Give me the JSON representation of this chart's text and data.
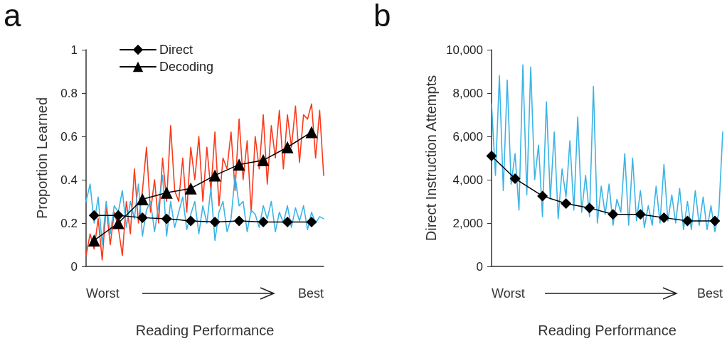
{
  "chart_data": [
    {
      "type": "line",
      "title": "a",
      "xlabel": "Reading Performance",
      "ylabel": "Proportion Learned",
      "annotations": [
        "Worst",
        "Best"
      ],
      "categories": [
        null,
        null,
        null,
        null,
        null,
        null,
        null,
        null,
        null,
        null,
        null,
        null,
        null,
        null,
        null,
        null,
        null,
        null,
        null,
        null,
        null,
        null,
        null,
        null,
        null,
        null,
        null,
        null,
        null,
        null,
        null,
        null,
        null,
        null,
        null,
        null,
        null,
        null,
        null,
        null,
        null,
        null,
        null,
        null,
        null,
        null,
        null,
        null,
        null,
        null,
        null,
        null,
        null,
        null,
        null,
        null,
        null,
        null,
        null,
        null
      ],
      "ylim": [
        0,
        1
      ],
      "yticks": [
        0,
        0.2,
        0.4,
        0.6,
        0.8,
        1
      ],
      "tick_labels": "y",
      "legend": "top left",
      "grid": false,
      "series": [
        {
          "color": "#fa3a1c",
          "marker": "none",
          "values": [
            0.05,
            0.15,
            0.08,
            0.22,
            0.03,
            0.28,
            0.1,
            0.25,
            0.18,
            0.05,
            0.3,
            0.15,
            0.45,
            0.2,
            0.35,
            0.55,
            0.25,
            0.4,
            0.2,
            0.5,
            0.3,
            0.65,
            0.35,
            0.3,
            0.5,
            0.25,
            0.55,
            0.4,
            0.6,
            0.3,
            0.55,
            0.35,
            0.62,
            0.28,
            0.5,
            0.45,
            0.62,
            0.35,
            0.68,
            0.4,
            0.58,
            0.25,
            0.6,
            0.45,
            0.7,
            0.38,
            0.65,
            0.5,
            0.72,
            0.45,
            0.7,
            0.55,
            0.74,
            0.48,
            0.7,
            0.68,
            0.75,
            0.5,
            0.72,
            0.42
          ]
        },
        {
          "color": "#3cb4e5",
          "marker": "none",
          "values": [
            0.3,
            0.38,
            0.2,
            0.32,
            0.1,
            0.3,
            0.15,
            0.28,
            0.25,
            0.35,
            0.18,
            0.3,
            0.22,
            0.38,
            0.14,
            0.26,
            0.3,
            0.16,
            0.28,
            0.42,
            0.14,
            0.3,
            0.18,
            0.25,
            0.32,
            0.17,
            0.24,
            0.3,
            0.15,
            0.28,
            0.2,
            0.36,
            0.12,
            0.25,
            0.3,
            0.16,
            0.22,
            0.42,
            0.28,
            0.3,
            0.16,
            0.26,
            0.24,
            0.18,
            0.28,
            0.22,
            0.3,
            0.16,
            0.25,
            0.2,
            0.28,
            0.18,
            0.27,
            0.21,
            0.28,
            0.17,
            0.25,
            0.2,
            0.23,
            0.22
          ]
        },
        {
          "name": "Direct",
          "color": "#000000",
          "marker": "diamond",
          "values": [
            null,
            null,
            0.235,
            null,
            null,
            null,
            null,
            null,
            0.235,
            null,
            null,
            null,
            null,
            null,
            0.225,
            null,
            null,
            null,
            null,
            null,
            0.22,
            null,
            null,
            null,
            null,
            null,
            0.21,
            null,
            null,
            null,
            null,
            null,
            0.205,
            null,
            null,
            null,
            null,
            null,
            0.21,
            null,
            null,
            null,
            null,
            null,
            0.205,
            null,
            null,
            null,
            null,
            null,
            0.205,
            null,
            null,
            null,
            null,
            null,
            0.205,
            null,
            null,
            null
          ]
        },
        {
          "name": "Decoding",
          "color": "#000000",
          "marker": "triangle",
          "values": [
            null,
            null,
            0.12,
            null,
            null,
            null,
            null,
            null,
            0.2,
            null,
            null,
            null,
            null,
            null,
            0.31,
            null,
            null,
            null,
            null,
            null,
            0.34,
            null,
            null,
            null,
            null,
            null,
            0.36,
            null,
            null,
            null,
            null,
            null,
            0.42,
            null,
            null,
            null,
            null,
            null,
            0.47,
            null,
            null,
            null,
            null,
            null,
            0.49,
            null,
            null,
            null,
            null,
            null,
            0.55,
            null,
            null,
            null,
            null,
            null,
            0.62,
            null,
            null,
            null
          ]
        }
      ]
    },
    {
      "type": "line",
      "title": "b",
      "xlabel": "Reading Performance",
      "ylabel": "Direct Instruction Attempts",
      "annotations": [
        "Worst",
        "Best"
      ],
      "categories": [
        null,
        null,
        null,
        null,
        null,
        null,
        null,
        null,
        null,
        null,
        null,
        null,
        null,
        null,
        null,
        null,
        null,
        null,
        null,
        null,
        null,
        null,
        null,
        null,
        null,
        null,
        null,
        null,
        null,
        null,
        null,
        null,
        null,
        null,
        null,
        null,
        null,
        null,
        null,
        null,
        null,
        null,
        null,
        null,
        null,
        null,
        null,
        null,
        null,
        null,
        null,
        null,
        null,
        null,
        null,
        null,
        null,
        null,
        null,
        null
      ],
      "ylim": [
        0,
        10000
      ],
      "yticks": [
        0,
        {
          "value": 2000,
          "label": "2,000"
        },
        {
          "value": 4000,
          "label": "4,000"
        },
        {
          "value": 6000,
          "label": "6,000"
        },
        {
          "value": 8000,
          "label": "8,000"
        },
        {
          "value": 10000,
          "label": "10,000"
        }
      ],
      "tick_labels": "y",
      "grid": false,
      "series": [
        {
          "color": "#3cb4e5",
          "marker": "none",
          "values": [
            7500,
            4200,
            8800,
            3500,
            8600,
            3800,
            5200,
            2600,
            9300,
            3300,
            9200,
            4000,
            5600,
            2300,
            7600,
            3100,
            6200,
            2200,
            4500,
            3200,
            5800,
            2600,
            6900,
            2500,
            4200,
            2300,
            8300,
            2000,
            3700,
            2400,
            3800,
            1900,
            3100,
            2500,
            5200,
            1900,
            5000,
            2100,
            3500,
            1800,
            2800,
            1900,
            3700,
            2000,
            4700,
            2100,
            3300,
            2000,
            3600,
            1700,
            3000,
            1700,
            3500,
            1900,
            3200,
            1700,
            2800,
            1600,
            2500,
            6200
          ]
        },
        {
          "color": "#000000",
          "marker": "diamond",
          "values": [
            5100,
            null,
            null,
            null,
            null,
            null,
            4050,
            null,
            null,
            null,
            null,
            null,
            null,
            3250,
            null,
            null,
            null,
            null,
            null,
            2900,
            null,
            null,
            null,
            null,
            null,
            2700,
            null,
            null,
            null,
            null,
            null,
            2400,
            null,
            null,
            null,
            null,
            null,
            null,
            2400,
            null,
            null,
            null,
            null,
            null,
            2250,
            null,
            null,
            null,
            null,
            null,
            2100,
            null,
            null,
            null,
            null,
            null,
            null,
            2100,
            null,
            null
          ]
        }
      ]
    }
  ]
}
